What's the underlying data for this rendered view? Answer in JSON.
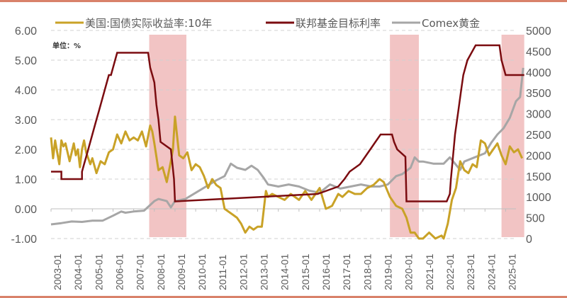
{
  "chart_data": {
    "type": "line",
    "title": "",
    "unit_label": "单位：%",
    "legend": [
      {
        "name": "美国:国债实际收益率:10年",
        "color": "#c9a227",
        "axis": "left"
      },
      {
        "name": "联邦基金目标利率",
        "color": "#7b0c10",
        "axis": "left"
      },
      {
        "name": "Comex黄金",
        "color": "#a6a6a6",
        "axis": "right"
      }
    ],
    "left_axis": {
      "ticks": [
        "6.00",
        "5.00",
        "4.00",
        "3.00",
        "2.00",
        "1.00",
        "0.00",
        "-1.00"
      ],
      "ylim": [
        -1,
        6
      ]
    },
    "right_axis": {
      "ticks": [
        "5000",
        "4500",
        "4000",
        "3500",
        "3000",
        "2500",
        "2000",
        "1500",
        "1000",
        "500",
        "0"
      ],
      "ylim": [
        0,
        5000
      ]
    },
    "x_ticks": [
      "2003-01",
      "2004-01",
      "2005-01",
      "2006-01",
      "2007-01",
      "2008-01",
      "2009-01",
      "2010-01",
      "2011-01",
      "2012-01",
      "2013-01",
      "2014-01",
      "2015-01",
      "2016-01",
      "2017-01",
      "2018-01",
      "2019-01",
      "2020-01",
      "2021-01",
      "2022-01",
      "2023-01",
      "2024-01",
      "2025-01"
    ],
    "shaded_periods": [
      {
        "start": 2007.75,
        "end": 2009.55
      },
      {
        "start": 2019.4,
        "end": 2020.8
      },
      {
        "start": 2024.8,
        "end": 2025.9
      }
    ],
    "shade_color": "#f2c4c4",
    "series": [
      {
        "name": "美国:国债实际收益率:10年",
        "x": [
          2003.0,
          2003.1,
          2003.2,
          2003.3,
          2003.4,
          2003.5,
          2003.6,
          2003.7,
          2003.8,
          2003.9,
          2004.0,
          2004.1,
          2004.2,
          2004.3,
          2004.4,
          2004.5,
          2004.6,
          2004.7,
          2004.8,
          2004.9,
          2005.0,
          2005.2,
          2005.4,
          2005.6,
          2005.8,
          2006.0,
          2006.2,
          2006.4,
          2006.6,
          2006.8,
          2007.0,
          2007.2,
          2007.4,
          2007.6,
          2007.8,
          2007.9,
          2008.0,
          2008.2,
          2008.4,
          2008.6,
          2008.8,
          2008.9,
          2009.0,
          2009.2,
          2009.4,
          2009.6,
          2009.8,
          2010.0,
          2010.2,
          2010.4,
          2010.6,
          2010.8,
          2011.0,
          2011.2,
          2011.4,
          2011.6,
          2011.8,
          2012.0,
          2012.2,
          2012.4,
          2012.6,
          2012.8,
          2013.0,
          2013.2,
          2013.3,
          2013.4,
          2013.5,
          2013.7,
          2014.0,
          2014.3,
          2014.6,
          2015.0,
          2015.3,
          2015.6,
          2016.0,
          2016.3,
          2016.6,
          2016.9,
          2017.1,
          2017.4,
          2017.7,
          2018.0,
          2018.3,
          2018.6,
          2018.9,
          2019.1,
          2019.4,
          2019.7,
          2020.0,
          2020.2,
          2020.4,
          2020.6,
          2020.8,
          2021.0,
          2021.3,
          2021.6,
          2021.9,
          2022.0,
          2022.2,
          2022.4,
          2022.6,
          2022.8,
          2023.0,
          2023.2,
          2023.4,
          2023.6,
          2023.8,
          2024.0,
          2024.2,
          2024.4,
          2024.6,
          2024.8,
          2025.0,
          2025.2,
          2025.4,
          2025.6,
          2025.8
        ],
        "values": [
          2.4,
          1.7,
          2.3,
          1.9,
          1.5,
          2.3,
          2.1,
          2.2,
          1.9,
          1.6,
          1.9,
          2.2,
          1.8,
          2.0,
          1.4,
          2.0,
          2.3,
          1.9,
          1.7,
          1.5,
          1.7,
          1.2,
          1.6,
          1.5,
          1.9,
          2.0,
          2.5,
          2.2,
          2.6,
          2.3,
          2.4,
          2.3,
          2.6,
          2.1,
          2.8,
          2.6,
          2.2,
          1.3,
          1.4,
          0.9,
          1.6,
          2.0,
          3.1,
          1.8,
          1.7,
          1.9,
          1.3,
          1.5,
          1.4,
          1.1,
          0.7,
          1.0,
          0.8,
          0.7,
          0.0,
          -0.1,
          -0.2,
          -0.3,
          -0.5,
          -0.8,
          -0.6,
          -0.7,
          -0.6,
          -0.6,
          0.0,
          0.6,
          0.4,
          0.5,
          0.4,
          0.3,
          0.5,
          0.3,
          0.6,
          0.3,
          0.7,
          0.0,
          0.1,
          0.5,
          0.4,
          0.6,
          0.5,
          0.5,
          0.7,
          0.8,
          1.0,
          0.9,
          0.4,
          0.1,
          0.0,
          -0.3,
          -0.8,
          -0.8,
          -1.0,
          -1.0,
          -0.8,
          -1.0,
          -0.9,
          -1.0,
          -0.5,
          0.3,
          0.7,
          1.6,
          1.3,
          1.2,
          1.5,
          1.4,
          2.3,
          2.2,
          1.8,
          2.0,
          2.2,
          1.8,
          1.5,
          2.1,
          1.9,
          2.0,
          1.7
        ]
      },
      {
        "name": "联邦基金目标利率",
        "x": [
          2003.0,
          2003.5,
          2003.5,
          2004.5,
          2004.5,
          2004.6,
          2004.7,
          2004.8,
          2004.9,
          2005.0,
          2005.1,
          2005.2,
          2005.3,
          2005.4,
          2005.5,
          2005.6,
          2005.7,
          2005.8,
          2005.9,
          2006.0,
          2006.1,
          2006.2,
          2006.3,
          2006.4,
          2006.5,
          2007.7,
          2007.8,
          2007.9,
          2008.0,
          2008.1,
          2008.2,
          2008.3,
          2008.8,
          2008.95,
          2009.0,
          2015.9,
          2016.9,
          2017.2,
          2017.45,
          2017.95,
          2018.2,
          2018.45,
          2018.7,
          2018.95,
          2019.5,
          2019.6,
          2019.75,
          2020.15,
          2020.2,
          2022.15,
          2022.3,
          2022.35,
          2022.45,
          2022.55,
          2022.7,
          2022.85,
          2022.95,
          2023.05,
          2023.15,
          2023.35,
          2023.55,
          2024.7,
          2024.8,
          2024.9,
          2025.0,
          2025.9
        ],
        "values": [
          1.25,
          1.25,
          1.0,
          1.0,
          1.25,
          1.5,
          1.75,
          2.0,
          2.25,
          2.5,
          2.75,
          3.0,
          3.25,
          3.5,
          3.75,
          4.0,
          4.25,
          4.5,
          4.5,
          4.75,
          5.0,
          5.25,
          5.25,
          5.25,
          5.25,
          5.25,
          4.75,
          4.5,
          4.25,
          3.5,
          3.0,
          2.25,
          2.0,
          1.0,
          0.25,
          0.5,
          0.75,
          1.0,
          1.25,
          1.5,
          1.75,
          2.0,
          2.25,
          2.5,
          2.5,
          2.25,
          2.0,
          1.75,
          0.25,
          0.25,
          0.5,
          1.0,
          1.75,
          2.5,
          3.25,
          4.0,
          4.5,
          4.75,
          5.0,
          5.25,
          5.5,
          5.5,
          5.0,
          4.75,
          4.5,
          4.5
        ]
      },
      {
        "name": "Comex黄金",
        "x": [
          2003.0,
          2003.5,
          2004.0,
          2004.5,
          2005.0,
          2005.5,
          2006.0,
          2006.4,
          2006.6,
          2007.0,
          2007.5,
          2008.0,
          2008.2,
          2008.6,
          2008.8,
          2009.0,
          2009.5,
          2010.0,
          2010.5,
          2011.0,
          2011.4,
          2011.7,
          2012.0,
          2012.4,
          2012.7,
          2013.0,
          2013.3,
          2013.5,
          2014.0,
          2014.5,
          2015.0,
          2015.5,
          2016.0,
          2016.5,
          2017.0,
          2017.5,
          2018.0,
          2018.5,
          2018.9,
          2019.3,
          2019.7,
          2020.0,
          2020.4,
          2020.6,
          2020.8,
          2021.0,
          2021.5,
          2022.0,
          2022.3,
          2022.8,
          2023.0,
          2023.5,
          2024.0,
          2024.3,
          2024.6,
          2024.9,
          2025.2,
          2025.5,
          2025.7,
          2025.85
        ],
        "values": [
          340,
          370,
          410,
          400,
          430,
          430,
          550,
          650,
          620,
          650,
          670,
          900,
          950,
          900,
          750,
          900,
          950,
          1100,
          1250,
          1400,
          1500,
          1800,
          1700,
          1650,
          1750,
          1650,
          1450,
          1300,
          1250,
          1300,
          1250,
          1150,
          1100,
          1300,
          1200,
          1250,
          1300,
          1250,
          1250,
          1300,
          1500,
          1550,
          1700,
          1950,
          1850,
          1850,
          1800,
          1800,
          1950,
          1650,
          1850,
          1950,
          2050,
          2300,
          2500,
          2650,
          2900,
          3300,
          3400,
          4100
        ]
      }
    ]
  }
}
